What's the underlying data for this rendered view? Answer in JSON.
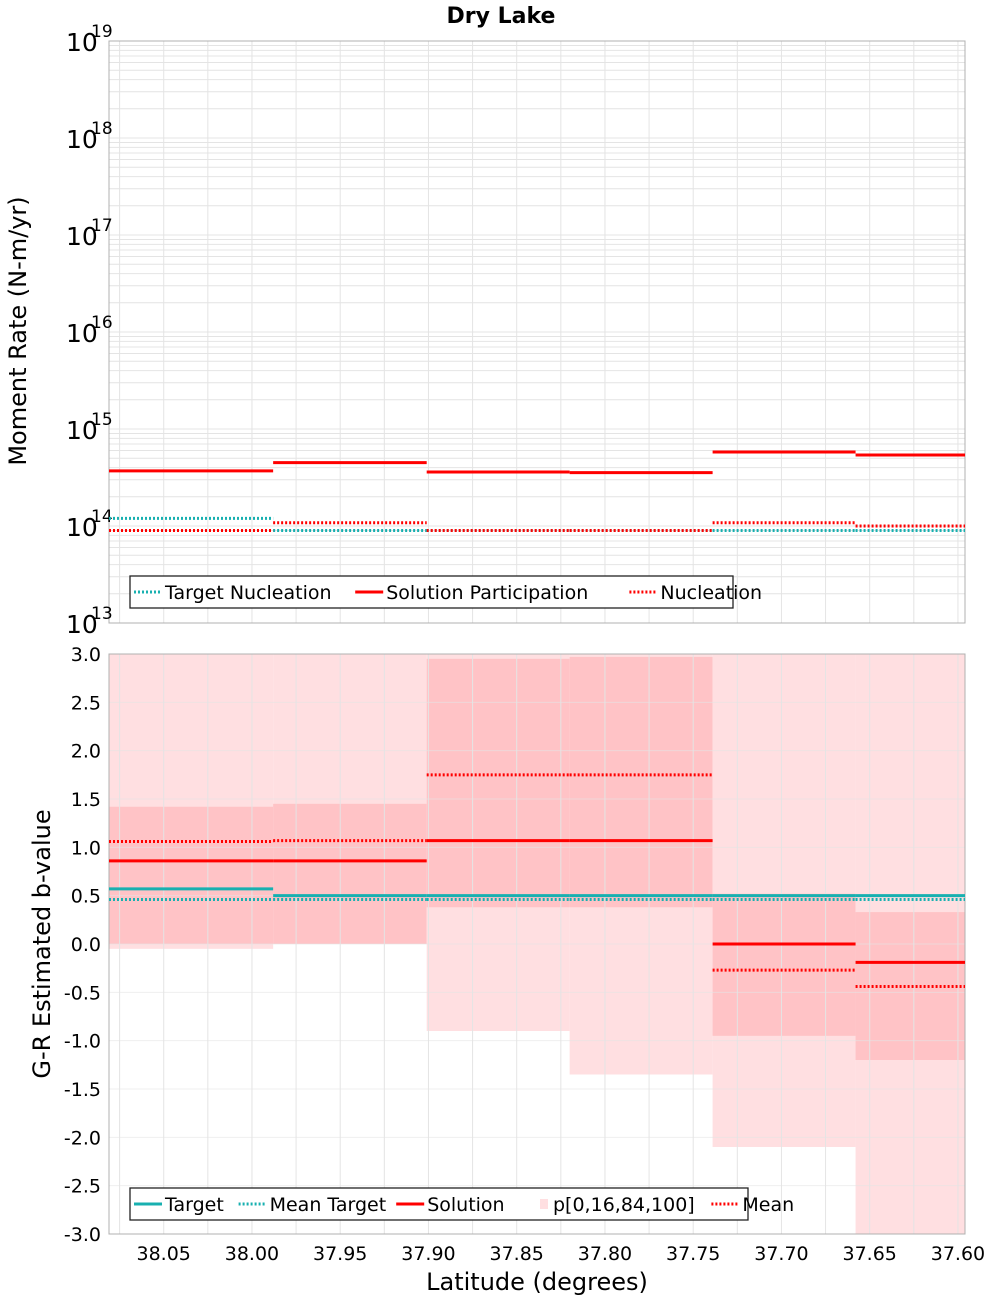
{
  "colors": {
    "target": "#18b0b0",
    "target_dark": "#4a8790",
    "solution": "#ff0000",
    "band_outer": "#ffdfe1",
    "band_inner": "#ffc3c6",
    "grid": "#e4e4e4",
    "frame": "#b0b0b0"
  },
  "chart_data": [
    {
      "type": "step-line",
      "title": "Dry Lake",
      "xlabel": "",
      "ylabel": "Moment Rate (N-m/yr)",
      "yscale": "log",
      "xlim": [
        38.081,
        37.596
      ],
      "ylim": [
        10000000000000.0,
        1e+19
      ],
      "y_ticks": [
        {
          "value": 10000000000000.0,
          "base": "10",
          "exp": "13"
        },
        {
          "value": 100000000000000.0,
          "base": "10",
          "exp": "14"
        },
        {
          "value": 1000000000000000.0,
          "base": "10",
          "exp": "15"
        },
        {
          "value": 1e+16,
          "base": "10",
          "exp": "16"
        },
        {
          "value": 1e+17,
          "base": "10",
          "exp": "17"
        },
        {
          "value": 1e+18,
          "base": "10",
          "exp": "18"
        },
        {
          "value": 1e+19,
          "base": "10",
          "exp": "19"
        }
      ],
      "grid": true,
      "legend_position": "bottom-left",
      "bin_edges": [
        38.081,
        37.988,
        37.901,
        37.82,
        37.739,
        37.658,
        37.596
      ],
      "series": [
        {
          "name": "Target Nucleation",
          "style": "dotted",
          "color": "target",
          "values": [
            120000000000000.0,
            90000000000000.0,
            90000000000000.0,
            90000000000000.0,
            90000000000000.0,
            90000000000000.0
          ]
        },
        {
          "name": "Solution Participation",
          "style": "solid",
          "color": "solution",
          "values": [
            370000000000000.0,
            450000000000000.0,
            360000000000000.0,
            355000000000000.0,
            580000000000000.0,
            540000000000000.0
          ]
        },
        {
          "name": "Nucleation",
          "style": "dotted",
          "color": "solution",
          "values": [
            90000000000000.0,
            108000000000000.0,
            90000000000000.0,
            90000000000000.0,
            108000000000000.0,
            100000000000000.0
          ]
        }
      ]
    },
    {
      "type": "step-line",
      "title": "",
      "xlabel": "Latitude (degrees)",
      "ylabel": "G-R Estimated b-value",
      "yscale": "linear",
      "xlim": [
        38.081,
        37.596
      ],
      "ylim": [
        -3.0,
        3.0
      ],
      "y_ticks": [
        "3.0",
        "2.5",
        "2.0",
        "1.5",
        "1.0",
        "0.5",
        "0.0",
        "-0.5",
        "-1.0",
        "-1.5",
        "-2.0",
        "-2.5",
        "-3.0"
      ],
      "x_ticks": [
        "38.05",
        "38.00",
        "37.95",
        "37.90",
        "37.85",
        "37.80",
        "37.75",
        "37.70",
        "37.65",
        "37.60"
      ],
      "grid": true,
      "legend_position": "bottom-left",
      "bin_edges": [
        38.081,
        37.988,
        37.901,
        37.82,
        37.739,
        37.658,
        37.596
      ],
      "band_label": "p[0,16,84,100]",
      "bands": {
        "p0": [
          -0.05,
          0.0,
          -0.9,
          -1.35,
          -2.1,
          -3.0
        ],
        "p16": [
          0.0,
          0.0,
          0.38,
          0.38,
          -0.95,
          -1.2
        ],
        "p84": [
          1.42,
          1.45,
          2.95,
          2.97,
          0.52,
          0.33
        ],
        "p100": [
          3.0,
          3.0,
          3.0,
          3.0,
          3.0,
          3.0
        ]
      },
      "series": [
        {
          "name": "Target",
          "style": "solid",
          "color": "target",
          "values": [
            0.57,
            0.5,
            0.5,
            0.5,
            0.5,
            0.5
          ]
        },
        {
          "name": "Mean Target",
          "style": "dotted",
          "color": "target",
          "values": [
            0.46,
            0.46,
            0.46,
            0.46,
            0.46,
            0.46
          ]
        },
        {
          "name": "Solution",
          "style": "solid",
          "color": "solution",
          "values": [
            0.86,
            0.86,
            1.07,
            1.07,
            0.0,
            -0.19
          ]
        },
        {
          "name": "Mean",
          "style": "dotted",
          "color": "solution",
          "values": [
            1.06,
            1.07,
            1.75,
            1.75,
            -0.27,
            -0.44
          ]
        }
      ]
    }
  ]
}
